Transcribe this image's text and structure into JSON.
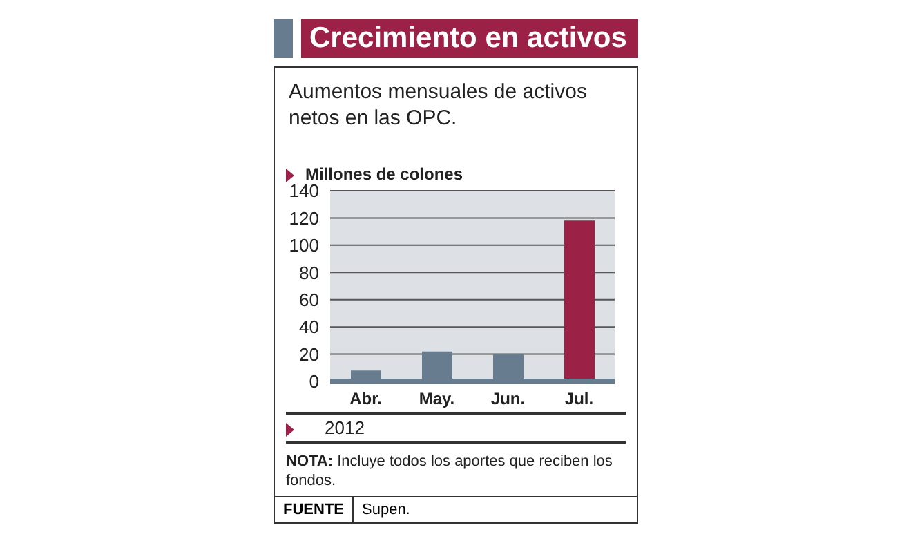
{
  "chart_data": {
    "type": "bar",
    "title": "Crecimiento en activos",
    "subtitle": "Aumentos mensuales de activos netos en las OPC.",
    "ylabel": "Millones de colones",
    "xlabel": "2012",
    "categories": [
      "Abr.",
      "May.",
      "Jun.",
      "Jul."
    ],
    "values": [
      8,
      22,
      20,
      118
    ],
    "colors": [
      "#677c8e",
      "#677c8e",
      "#677c8e",
      "#9b2146"
    ],
    "ylim": [
      0,
      140
    ],
    "yticks": [
      0,
      20,
      40,
      60,
      80,
      100,
      120,
      140
    ],
    "grid": "y",
    "annotations": [
      "NOTA: Incluye todos los aportes que reciben los fondos.",
      "FUENTE",
      "Supen."
    ]
  }
}
